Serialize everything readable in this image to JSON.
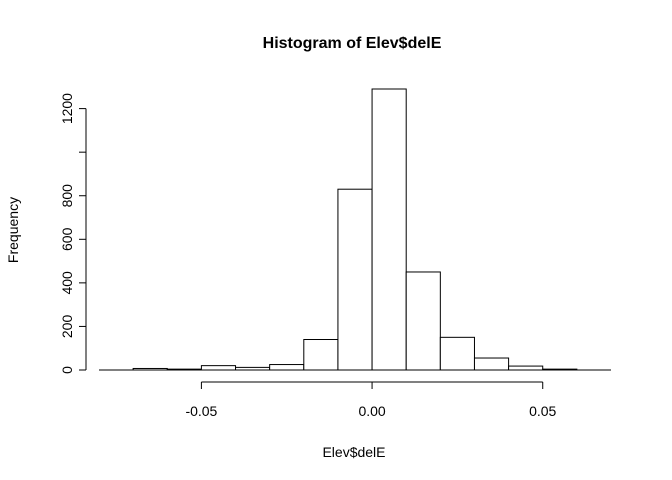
{
  "chart_data": {
    "type": "bar",
    "title": "Histogram of Elev$delE",
    "xlabel": "Elev$delE",
    "ylabel": "Frequency",
    "bin_edges": [
      -0.07,
      -0.06,
      -0.05,
      -0.04,
      -0.03,
      -0.02,
      -0.01,
      0.0,
      0.01,
      0.02,
      0.03,
      0.04,
      0.05,
      0.06
    ],
    "values": [
      7,
      4,
      20,
      12,
      25,
      140,
      830,
      1290,
      450,
      150,
      55,
      18,
      4
    ],
    "xlim": [
      -0.08,
      0.07
    ],
    "ylim": [
      0,
      1290
    ],
    "x_ticks": [
      -0.05,
      0.0,
      0.05
    ],
    "x_tick_labels": [
      "-0.05",
      "0.00",
      "0.05"
    ],
    "y_ticks": [
      0,
      200,
      400,
      600,
      800,
      1000,
      1200
    ],
    "y_tick_labels": [
      "0",
      "200",
      "400",
      "600",
      "800",
      "",
      "1200"
    ]
  }
}
